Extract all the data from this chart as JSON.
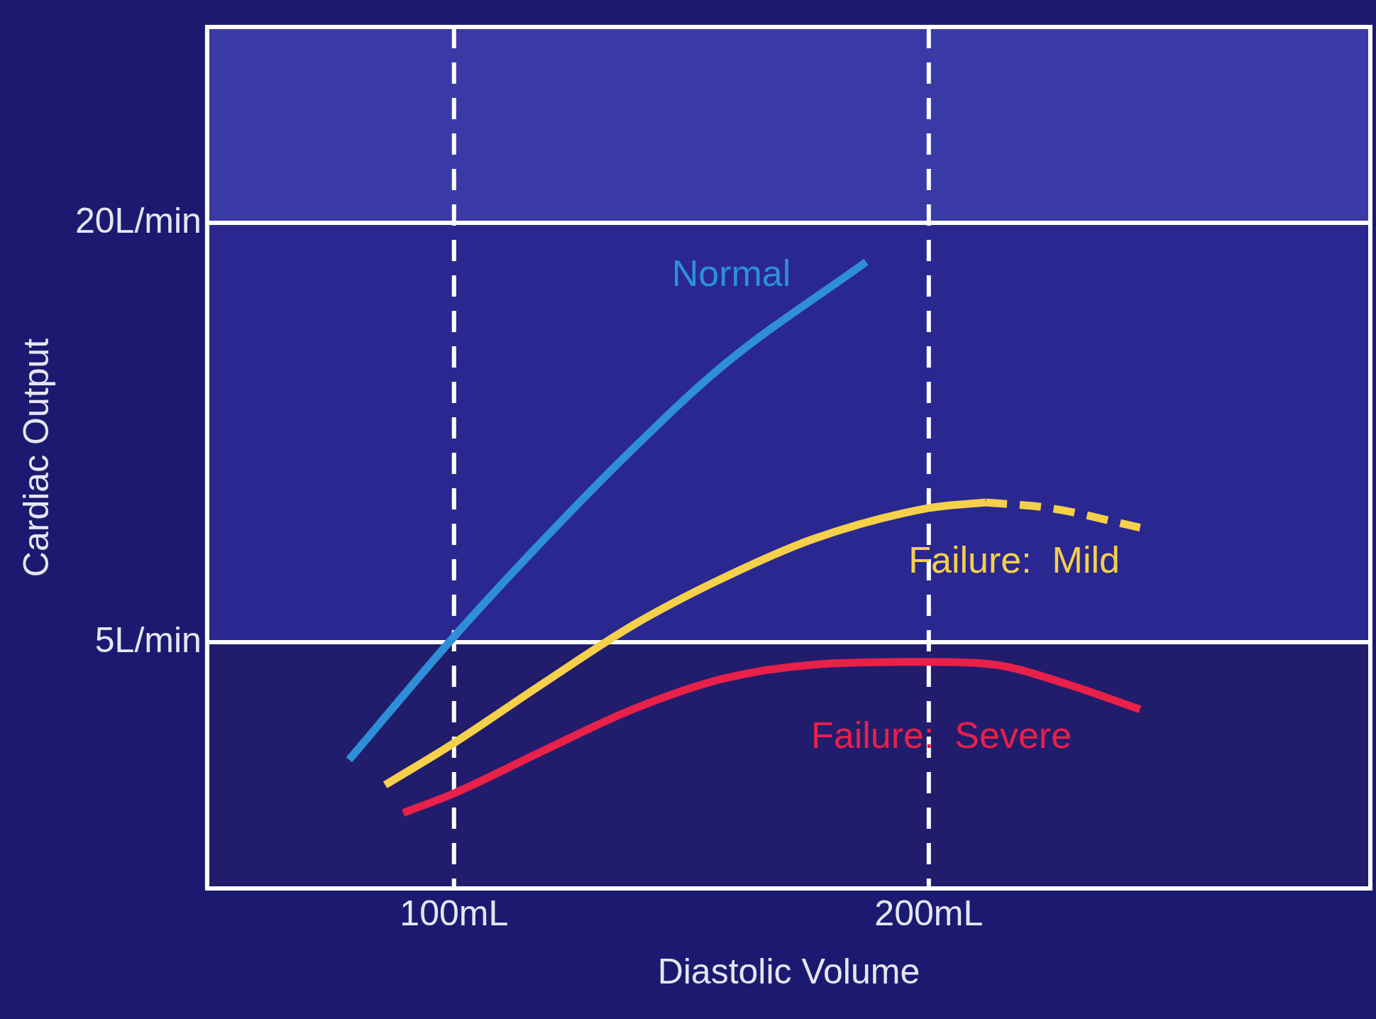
{
  "chart_data": {
    "type": "line",
    "xlabel": "Diastolic Volume",
    "ylabel": "Cardiac Output",
    "xlim": [
      48,
      293
    ],
    "xticks": [
      {
        "value": 100,
        "label": "100mL"
      },
      {
        "value": 200,
        "label": "200mL"
      }
    ],
    "ylim": [
      -3.8,
      27
    ],
    "yticks": [
      {
        "value": 5,
        "label": "5L/min"
      },
      {
        "value": 20,
        "label": "20L/min"
      }
    ],
    "grid": true,
    "legend": false,
    "marker": "none",
    "bands": [
      {
        "axis": "y",
        "from": 20,
        "to": 27,
        "color": "#3a3aa6"
      },
      {
        "axis": "y",
        "from": 5,
        "to": 20,
        "color": "#2a2890"
      },
      {
        "axis": "y",
        "from": -3.8,
        "to": 5,
        "color": "#221c6c"
      }
    ],
    "series": [
      {
        "name": "Normal",
        "color": "#2e8fd8",
        "x": [
          77.9,
          100,
          118.5,
          137.6,
          156.7,
          186.8
        ],
        "values": [
          0.8,
          5.2,
          8.6,
          11.9,
          14.9,
          18.6
        ]
      },
      {
        "name": "Failure:  Mild",
        "color": "#f5d04a",
        "x": [
          85.5,
          100,
          118.5,
          137.6,
          156.7,
          175.8,
          200,
          212
        ],
        "values": [
          -0.1,
          1.4,
          3.5,
          5.6,
          7.3,
          8.7,
          9.8,
          10.0
        ]
      },
      {
        "name": "Failure:  Severe",
        "color": "#e8204a",
        "x": [
          89.3,
          100,
          118.5,
          137.6,
          156.7,
          175.8,
          200,
          213.9,
          229.2,
          244.5
        ],
        "values": [
          -1.1,
          -0.4,
          1.1,
          2.6,
          3.7,
          4.2,
          4.3,
          4.2,
          3.5,
          2.6
        ]
      },
      {
        "color": "#f5d04a",
        "line_style": "dashed",
        "x": [
          212,
          225.4,
          244.5
        ],
        "values": [
          10.0,
          9.8,
          9.1
        ]
      }
    ]
  }
}
